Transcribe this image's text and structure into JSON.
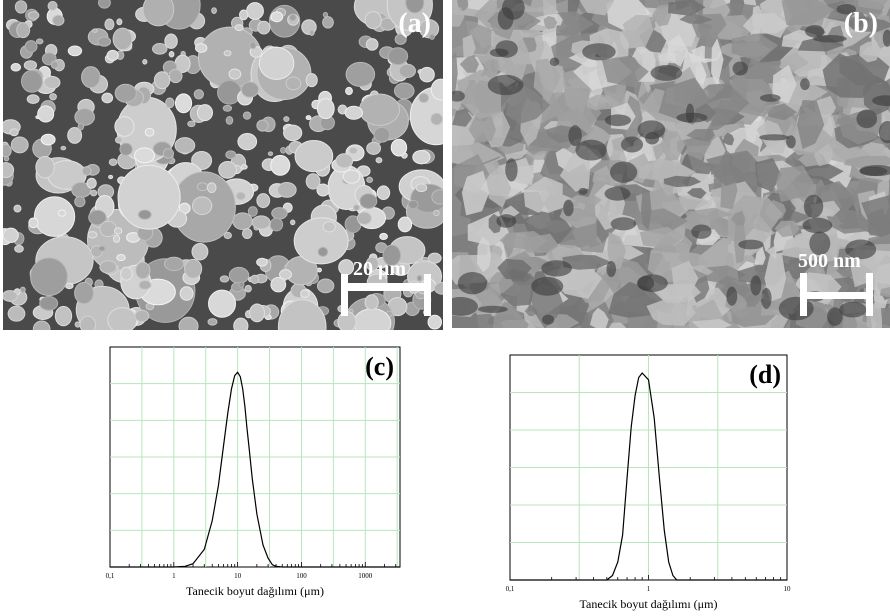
{
  "panels": {
    "a": {
      "label": "(a)",
      "scale": "20 μm"
    },
    "b": {
      "label": "(b)",
      "scale": "500 nm"
    }
  },
  "chart_data": [
    {
      "type": "line",
      "label": "(c)",
      "xscale": "log",
      "xlim": [
        0.1,
        3500
      ],
      "xticks": [
        0.1,
        1,
        10,
        100,
        1000
      ],
      "xticklabels": [
        "0,1",
        "1",
        "10",
        "100",
        "1000"
      ],
      "xlabel": "Tanecik boyut dağılımı (μm)",
      "ylabel": "",
      "ylim": [
        0,
        100
      ],
      "grid": true,
      "series": [
        {
          "x": [
            0.1,
            0.5,
            1,
            1.5,
            2,
            3,
            4,
            5,
            6,
            7,
            8,
            9,
            10,
            11,
            12,
            13,
            14,
            15,
            17,
            20,
            25,
            30,
            35,
            40,
            50,
            100,
            1000,
            3500
          ],
          "y": [
            0,
            0,
            0,
            0.3,
            1.5,
            8,
            21,
            37,
            55,
            70,
            81,
            87,
            88.5,
            86.5,
            81,
            73,
            63,
            55,
            40,
            24,
            10,
            4,
            1,
            0.3,
            0,
            0,
            0,
            0
          ]
        }
      ]
    },
    {
      "type": "line",
      "label": "(d)",
      "xscale": "log",
      "xlim": [
        0.1,
        10
      ],
      "xticks": [
        0.1,
        1,
        10
      ],
      "xticklabels": [
        "0,1",
        "1",
        "10"
      ],
      "xlabel": "Tanecik boyut dağılımı (μm)",
      "ylabel": "",
      "ylim": [
        0,
        100
      ],
      "grid": true,
      "series": [
        {
          "x": [
            0.1,
            0.5,
            0.55,
            0.6,
            0.65,
            0.7,
            0.75,
            0.8,
            0.85,
            0.9,
            1.0,
            1.1,
            1.2,
            1.3,
            1.4,
            1.5,
            1.6,
            2,
            10
          ],
          "y": [
            0,
            0,
            2,
            8,
            20,
            45,
            68,
            82,
            90,
            92,
            89,
            72,
            45,
            22,
            8,
            2,
            0,
            0,
            0
          ]
        }
      ]
    }
  ]
}
